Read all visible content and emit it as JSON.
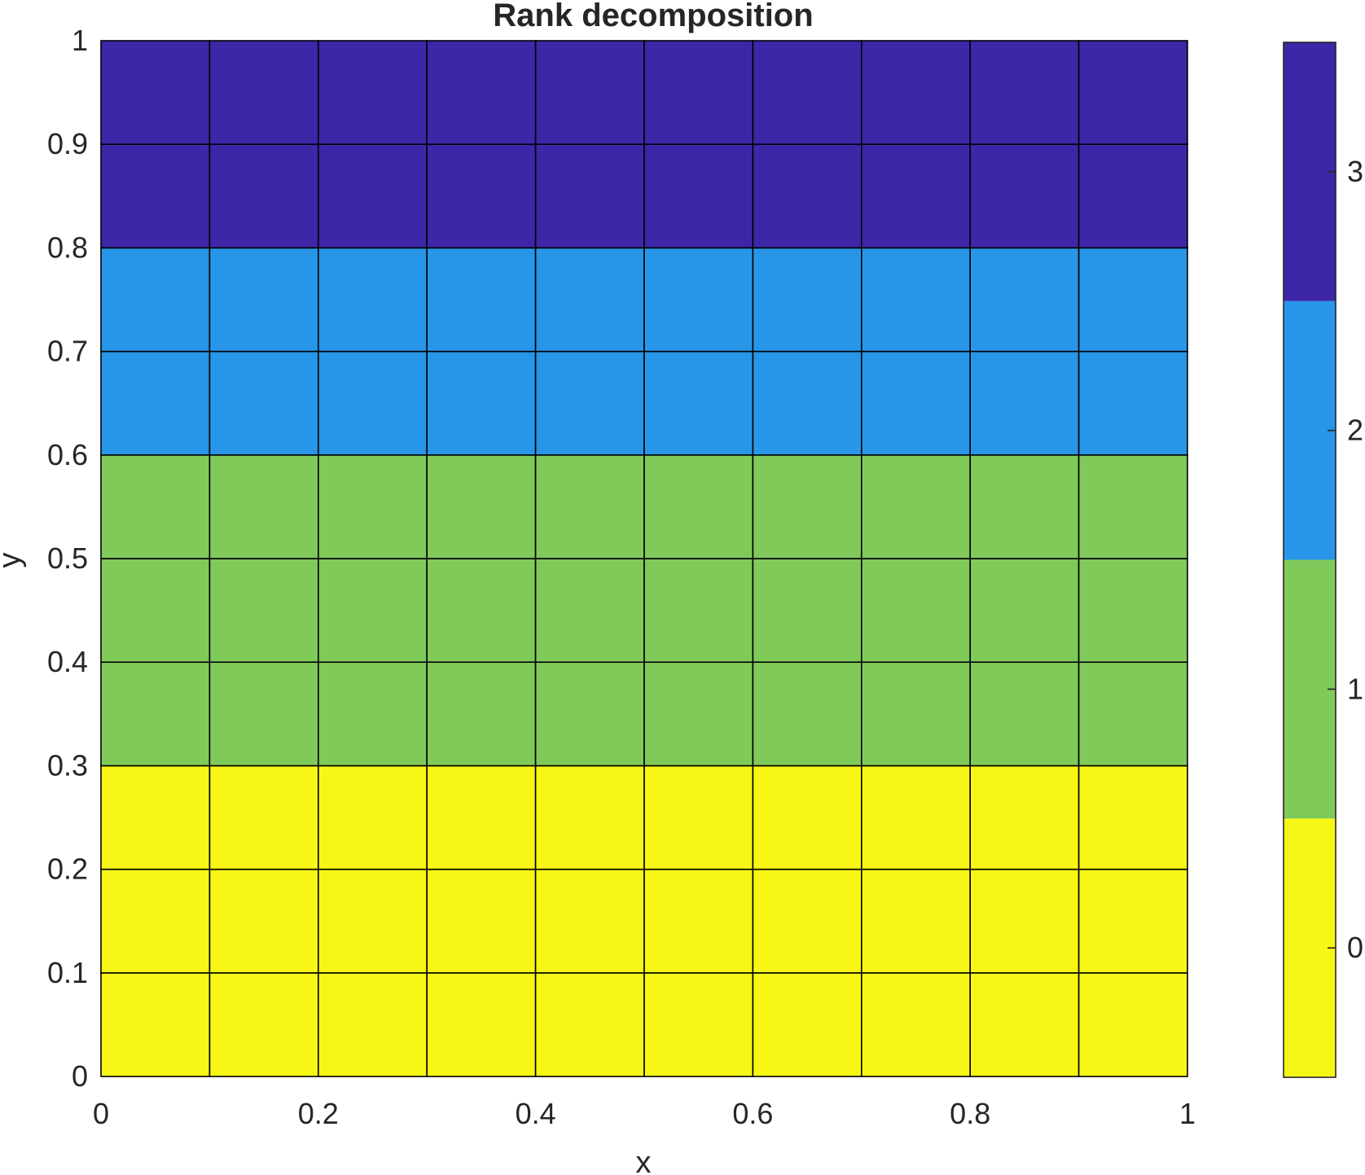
{
  "chart_data": {
    "type": "heatmap",
    "title": "Rank decomposition",
    "xlabel": "x",
    "ylabel": "y",
    "xlim": [
      0,
      1
    ],
    "ylim": [
      0,
      1
    ],
    "grid": "on",
    "x_edges": [
      0,
      0.1,
      0.2,
      0.3,
      0.4,
      0.5,
      0.6,
      0.7,
      0.8,
      0.9,
      1
    ],
    "y_edges": [
      0,
      0.1,
      0.2,
      0.3,
      0.4,
      0.5,
      0.6,
      0.7,
      0.8,
      0.9,
      1
    ],
    "x_tick_labels": [
      "0",
      "0.2",
      "0.4",
      "0.6",
      "0.8",
      "1"
    ],
    "y_tick_labels": [
      "0",
      "0.1",
      "0.2",
      "0.3",
      "0.4",
      "0.5",
      "0.6",
      "0.7",
      "0.8",
      "0.9",
      "1"
    ],
    "values": [
      [
        0,
        0,
        0,
        0,
        0,
        0,
        0,
        0,
        0,
        0
      ],
      [
        0,
        0,
        0,
        0,
        0,
        0,
        0,
        0,
        0,
        0
      ],
      [
        0,
        0,
        0,
        0,
        0,
        0,
        0,
        0,
        0,
        0
      ],
      [
        1,
        1,
        1,
        1,
        1,
        1,
        1,
        1,
        1,
        1
      ],
      [
        1,
        1,
        1,
        1,
        1,
        1,
        1,
        1,
        1,
        1
      ],
      [
        1,
        1,
        1,
        1,
        1,
        1,
        1,
        1,
        1,
        1
      ],
      [
        2,
        2,
        2,
        2,
        2,
        2,
        2,
        2,
        2,
        2
      ],
      [
        2,
        2,
        2,
        2,
        2,
        2,
        2,
        2,
        2,
        2
      ],
      [
        3,
        3,
        3,
        3,
        3,
        3,
        3,
        3,
        3,
        3
      ],
      [
        3,
        3,
        3,
        3,
        3,
        3,
        3,
        3,
        3,
        3
      ]
    ],
    "colorbar": {
      "clim": [
        -0.5,
        3.5
      ],
      "ticks": [
        0,
        1,
        2,
        3
      ],
      "tick_labels": [
        "0",
        "1",
        "2",
        "3"
      ],
      "colors": [
        "#F7F716",
        "#80CA59",
        "#2896E8",
        "#3E26A8"
      ]
    }
  }
}
